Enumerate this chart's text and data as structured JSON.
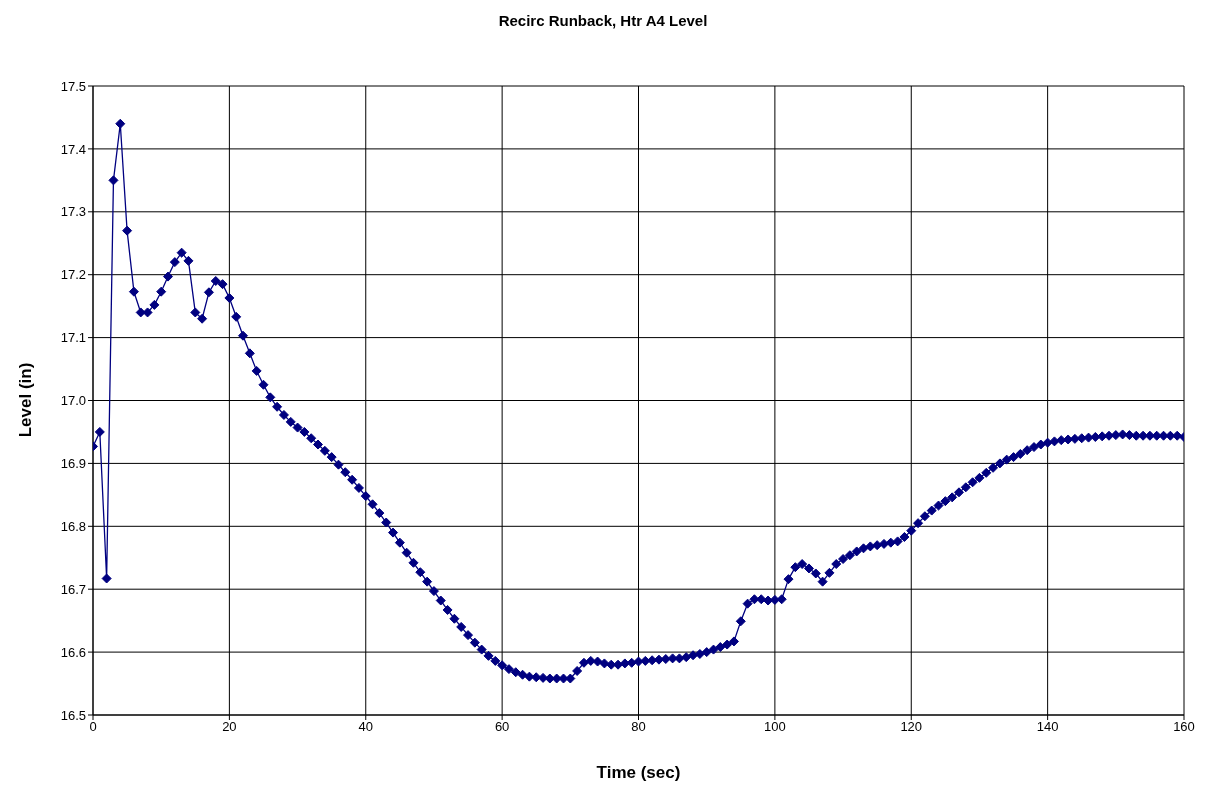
{
  "chart_data": {
    "type": "line",
    "title": "Recirc Runback, Htr A4 Level",
    "xlabel": "Time (sec)",
    "ylabel": "Level (in)",
    "x": [
      0,
      1,
      2,
      3,
      4,
      5,
      6,
      7,
      8,
      9,
      10,
      11,
      12,
      13,
      14,
      15,
      16,
      17,
      18,
      19,
      20,
      21,
      22,
      23,
      24,
      25,
      26,
      27,
      28,
      29,
      30,
      31,
      32,
      33,
      34,
      35,
      36,
      37,
      38,
      39,
      40,
      41,
      42,
      43,
      44,
      45,
      46,
      47,
      48,
      49,
      50,
      51,
      52,
      53,
      54,
      55,
      56,
      57,
      58,
      59,
      60,
      61,
      62,
      63,
      64,
      65,
      66,
      67,
      68,
      69,
      70,
      71,
      72,
      73,
      74,
      75,
      76,
      77,
      78,
      79,
      80,
      81,
      82,
      83,
      84,
      85,
      86,
      87,
      88,
      89,
      90,
      91,
      92,
      93,
      94,
      95,
      96,
      97,
      98,
      99,
      100,
      101,
      102,
      103,
      104,
      105,
      106,
      107,
      108,
      109,
      110,
      111,
      112,
      113,
      114,
      115,
      116,
      117,
      118,
      119,
      120,
      121,
      122,
      123,
      124,
      125,
      126,
      127,
      128,
      129,
      130,
      131,
      132,
      133,
      134,
      135,
      136,
      137,
      138,
      139,
      140,
      141,
      142,
      143,
      144,
      145,
      146,
      147,
      148,
      149,
      150,
      151,
      152,
      153,
      154,
      155,
      156,
      157,
      158,
      159,
      160
    ],
    "values": [
      16.927,
      16.95,
      16.717,
      17.35,
      17.44,
      17.27,
      17.173,
      17.14,
      17.14,
      17.152,
      17.173,
      17.197,
      17.22,
      17.235,
      17.222,
      17.14,
      17.13,
      17.172,
      17.19,
      17.185,
      17.163,
      17.133,
      17.103,
      17.075,
      17.047,
      17.025,
      17.005,
      16.99,
      16.977,
      16.966,
      16.957,
      16.95,
      16.94,
      16.93,
      16.92,
      16.91,
      16.898,
      16.886,
      16.874,
      16.861,
      16.848,
      16.835,
      16.821,
      16.806,
      16.79,
      16.774,
      16.758,
      16.742,
      16.727,
      16.712,
      16.697,
      16.682,
      16.667,
      16.653,
      16.64,
      16.627,
      16.615,
      16.604,
      16.594,
      16.586,
      16.579,
      16.573,
      16.568,
      16.564,
      16.561,
      16.56,
      16.559,
      16.558,
      16.558,
      16.558,
      16.558,
      16.57,
      16.583,
      16.586,
      16.585,
      16.582,
      16.58,
      16.58,
      16.582,
      16.583,
      16.585,
      16.586,
      16.587,
      16.588,
      16.589,
      16.59,
      16.59,
      16.592,
      16.595,
      16.597,
      16.6,
      16.604,
      16.608,
      16.612,
      16.617,
      16.649,
      16.677,
      16.684,
      16.684,
      16.682,
      16.683,
      16.684,
      16.716,
      16.735,
      16.74,
      16.733,
      16.725,
      16.712,
      16.726,
      16.74,
      16.748,
      16.754,
      16.76,
      16.765,
      16.768,
      16.77,
      16.772,
      16.774,
      16.776,
      16.783,
      16.793,
      16.805,
      16.816,
      16.825,
      16.833,
      16.84,
      16.846,
      16.854,
      16.862,
      16.87,
      16.877,
      16.885,
      16.893,
      16.9,
      16.906,
      16.91,
      16.915,
      16.921,
      16.926,
      16.93,
      16.933,
      16.935,
      16.937,
      16.938,
      16.939,
      16.94,
      16.941,
      16.942,
      16.943,
      16.944,
      16.945,
      16.946,
      16.945,
      16.944,
      16.944,
      16.944,
      16.944,
      16.944,
      16.944,
      16.944,
      16.942
    ],
    "color": "#000080",
    "marker": "diamond",
    "grid": true,
    "xlim": [
      0,
      160
    ],
    "xticks": [
      0,
      20,
      40,
      60,
      80,
      100,
      120,
      140,
      160
    ],
    "ylim": [
      16.5,
      17.5
    ],
    "yticks": [
      16.5,
      16.6,
      16.7,
      16.8,
      16.9,
      {
        "value": 17,
        "label": "17.0"
      },
      17.1,
      17.2,
      17.3,
      17.4,
      17.5
    ]
  }
}
